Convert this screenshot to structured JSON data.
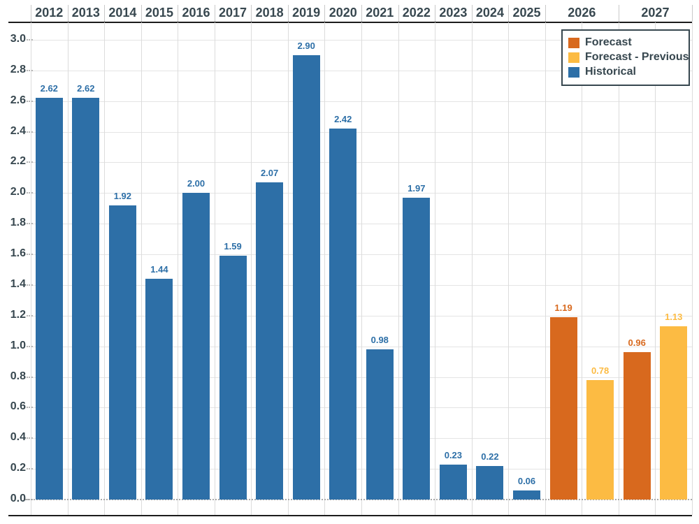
{
  "chart_data": {
    "type": "bar",
    "title": "",
    "xlabel": "",
    "ylabel": "",
    "categories": [
      "2012",
      "2013",
      "2014",
      "2015",
      "2016",
      "2017",
      "2018",
      "2019",
      "2020",
      "2021",
      "2022",
      "2023",
      "2024",
      "2025",
      "2026",
      "2027"
    ],
    "series": [
      {
        "name": "Historical",
        "color": "#2D6FA7",
        "values": [
          2.62,
          2.62,
          1.92,
          1.44,
          2.0,
          1.59,
          2.07,
          2.9,
          2.42,
          0.98,
          1.97,
          0.23,
          0.22,
          0.06,
          null,
          null
        ]
      },
      {
        "name": "Forecast",
        "color": "#D8691E",
        "values": [
          null,
          null,
          null,
          null,
          null,
          null,
          null,
          null,
          null,
          null,
          null,
          null,
          null,
          null,
          1.19,
          0.96
        ]
      },
      {
        "name": "Forecast - Previous",
        "color": "#FCBB43",
        "values": [
          null,
          null,
          null,
          null,
          null,
          null,
          null,
          null,
          null,
          null,
          null,
          null,
          null,
          null,
          0.78,
          1.13
        ]
      }
    ],
    "ylim": [
      0.0,
      3.0
    ],
    "yticks": [
      "0.0",
      "0.2",
      "0.4",
      "0.6",
      "0.8",
      "1.0",
      "1.2",
      "1.4",
      "1.6",
      "1.8",
      "2.0",
      "2.2",
      "2.4",
      "2.6",
      "2.8",
      "3.0"
    ],
    "grid": true,
    "value_labels": true,
    "x_axis_position": "top",
    "legend": {
      "position": "top-right",
      "items": [
        {
          "label": "Forecast",
          "color": "#D8691E"
        },
        {
          "label": "Forecast - Previous",
          "color": "#FCBB43"
        },
        {
          "label": "Historical",
          "color": "#2D6FA7"
        }
      ]
    }
  }
}
